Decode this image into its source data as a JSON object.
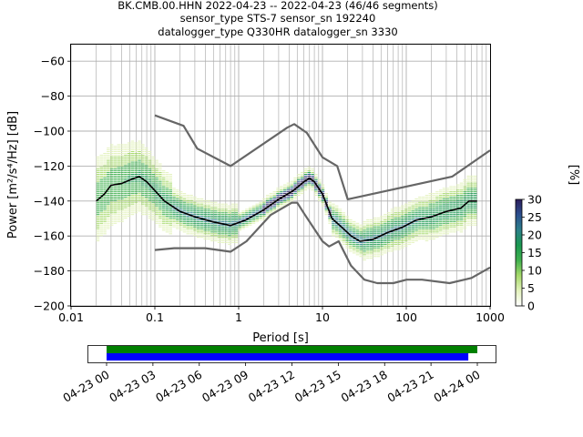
{
  "figure": {
    "title_lines": [
      "BK.CMB.00.HHN   2022-04-23 -- 2022-04-23  (46/46 segments)",
      "sensor_type STS-7 sensor_sn 192240",
      "datalogger_type Q330HR datalogger_sn 3330"
    ]
  },
  "chart_data": [
    {
      "type": "heatmap",
      "title": "BK.CMB.00.HHN   2022-04-23 -- 2022-04-23  (46/46 segments)",
      "xlabel": "Period [s]",
      "ylabel": "Power [m²/s⁴/Hz] [dB]",
      "x_scale": "log",
      "xlim": [
        0.01,
        1000
      ],
      "ylim": [
        -200,
        -50
      ],
      "xticks": [
        0.01,
        0.1,
        1,
        10,
        100,
        1000
      ],
      "xtick_labels": [
        "0.01",
        "0.1",
        "1",
        "10",
        "100",
        "1000"
      ],
      "yticks": [
        -60,
        -80,
        -100,
        -120,
        -140,
        -160,
        -180,
        -200
      ],
      "ytick_labels": [
        "−60",
        "−80",
        "−100",
        "−120",
        "−140",
        "−160",
        "−180",
        "−200"
      ],
      "grid": true,
      "colorbar": {
        "label": "[%]",
        "range": [
          0,
          30
        ],
        "ticks": [
          0,
          5,
          10,
          15,
          20,
          25,
          30
        ],
        "tick_labels": [
          "0",
          "5",
          "10",
          "15",
          "20",
          "25",
          "30"
        ],
        "colors": [
          "#ffffff",
          "#e3f2bc",
          "#a6d96a",
          "#3fb04e",
          "#1a9850",
          "#2c7f8a",
          "#2b4f8f",
          "#2d1e5c"
        ]
      },
      "series": [
        {
          "role": "mean",
          "color": "#000000",
          "points": [
            [
              0.02,
              -140
            ],
            [
              0.025,
              -136
            ],
            [
              0.03,
              -131
            ],
            [
              0.04,
              -130
            ],
            [
              0.05,
              -128
            ],
            [
              0.065,
              -126
            ],
            [
              0.08,
              -129
            ],
            [
              0.1,
              -134
            ],
            [
              0.13,
              -140
            ],
            [
              0.2,
              -146
            ],
            [
              0.3,
              -149
            ],
            [
              0.5,
              -152
            ],
            [
              0.8,
              -154
            ],
            [
              1.2,
              -151
            ],
            [
              2,
              -145
            ],
            [
              3,
              -139
            ],
            [
              4.5,
              -134
            ],
            [
              6,
              -129
            ],
            [
              7,
              -127
            ],
            [
              8,
              -129
            ],
            [
              10,
              -136
            ],
            [
              13,
              -150
            ],
            [
              17,
              -155
            ],
            [
              22,
              -160
            ],
            [
              28,
              -163
            ],
            [
              40,
              -162
            ],
            [
              60,
              -158
            ],
            [
              90,
              -155
            ],
            [
              130,
              -151
            ],
            [
              200,
              -149
            ],
            [
              300,
              -146
            ],
            [
              450,
              -144
            ],
            [
              560,
              -140
            ],
            [
              700,
              -140
            ]
          ]
        },
        {
          "role": "high noise model",
          "color": "#666666",
          "points": [
            [
              0.1,
              -91
            ],
            [
              0.22,
              -97
            ],
            [
              0.32,
              -110
            ],
            [
              0.8,
              -120
            ],
            [
              3.8,
              -98
            ],
            [
              4.6,
              -96
            ],
            [
              6.5,
              -101
            ],
            [
              10,
              -115
            ],
            [
              15,
              -120
            ],
            [
              20,
              -139
            ],
            [
              354,
              -126
            ],
            [
              1000,
              -111
            ]
          ]
        },
        {
          "role": "low noise model",
          "color": "#666666",
          "points": [
            [
              0.1,
              -168
            ],
            [
              0.17,
              -167
            ],
            [
              0.4,
              -167
            ],
            [
              0.8,
              -169
            ],
            [
              1.24,
              -163
            ],
            [
              2.4,
              -148
            ],
            [
              4.3,
              -141
            ],
            [
              5,
              -141
            ],
            [
              6,
              -147
            ],
            [
              10,
              -163
            ],
            [
              12,
              -166
            ],
            [
              15.6,
              -163
            ],
            [
              21.9,
              -177
            ],
            [
              31.6,
              -185
            ],
            [
              45,
              -187
            ],
            [
              70,
              -187
            ],
            [
              101,
              -185
            ],
            [
              154,
              -185
            ],
            [
              328,
              -187
            ],
            [
              600,
              -184
            ],
            [
              1000,
              -178
            ]
          ]
        }
      ]
    },
    {
      "type": "timeline",
      "xlim": [
        "2022-04-23 00:00",
        "2022-04-24 00:00"
      ],
      "xtick_labels": [
        "04-23 00",
        "04-23 03",
        "04-23 06",
        "04-23 09",
        "04-23 12",
        "04-23 15",
        "04-23 18",
        "04-23 21",
        "04-24 00"
      ],
      "bars": [
        {
          "name": "data",
          "color": "#008000",
          "start": "2022-04-23 00:00",
          "end": "2022-04-24 00:00"
        },
        {
          "name": "used",
          "color": "#0000ff",
          "start": "2022-04-23 00:00",
          "end": "2022-04-23 23:25"
        }
      ]
    }
  ]
}
